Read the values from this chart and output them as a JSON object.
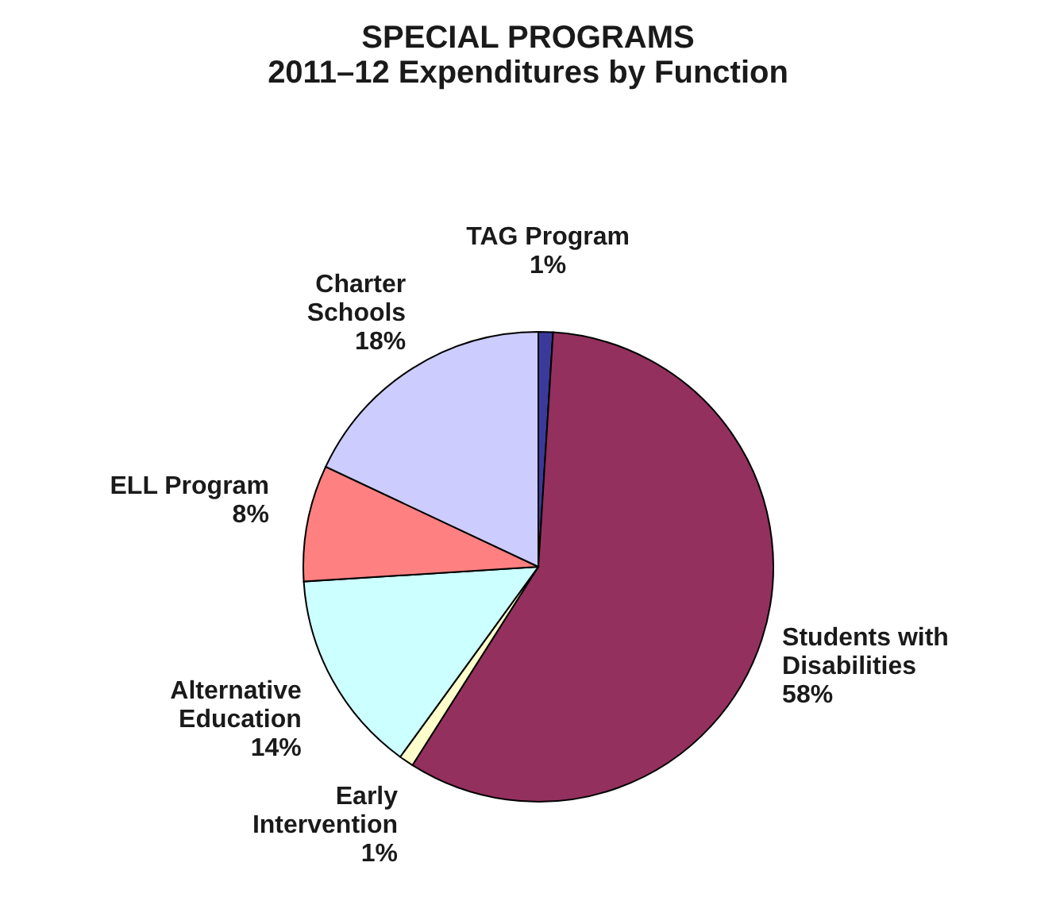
{
  "chart_data": {
    "type": "pie",
    "title": "SPECIAL PROGRAMS\n2011–12 Expenditures by Function",
    "categories": [
      "TAG Program",
      "Students with Disabilities",
      "Early Intervention",
      "Alternative Education",
      "ELL Program",
      "Charter Schools"
    ],
    "values": [
      1,
      58,
      1,
      14,
      8,
      18
    ],
    "colors": [
      "#3a3a9a",
      "#94305e",
      "#ffffcc",
      "#ccffff",
      "#ff8080",
      "#ccccff"
    ],
    "value_labels": [
      "1%",
      "58%",
      "1%",
      "14%",
      "8%",
      "18%"
    ],
    "legend": false
  }
}
